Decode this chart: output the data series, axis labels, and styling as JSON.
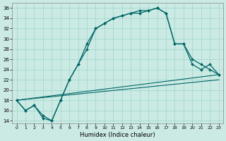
{
  "xlabel": "Humidex (Indice chaleur)",
  "background_color": "#cceae4",
  "grid_color": "#99d5cc",
  "line_color": "#006666",
  "xlim": [
    -0.5,
    23.5
  ],
  "ylim": [
    13.5,
    37
  ],
  "yticks": [
    14,
    16,
    18,
    20,
    22,
    24,
    26,
    28,
    30,
    32,
    34,
    36
  ],
  "xticks": [
    0,
    1,
    2,
    3,
    4,
    5,
    6,
    7,
    8,
    9,
    10,
    11,
    12,
    13,
    14,
    15,
    16,
    17,
    18,
    19,
    20,
    21,
    22,
    23
  ],
  "curve1_x": [
    0,
    1,
    2,
    3,
    4,
    5,
    6,
    7,
    8,
    9,
    10,
    11,
    12,
    13,
    14,
    15,
    16,
    17,
    18,
    19,
    20,
    21,
    22,
    23
  ],
  "curve1_y": [
    18,
    16,
    17,
    14.5,
    14,
    18,
    22,
    25,
    29,
    32,
    33,
    34,
    34.5,
    35,
    35,
    35.5,
    36,
    35,
    29,
    29,
    26,
    25,
    24,
    23
  ],
  "curve2_x": [
    0,
    1,
    2,
    3,
    4,
    5,
    6,
    7,
    8,
    9,
    10,
    11,
    12,
    13,
    14,
    15,
    16,
    17,
    18,
    19,
    20,
    21,
    22,
    23
  ],
  "curve2_y": [
    18,
    16,
    17,
    15,
    14,
    18,
    22,
    25,
    28,
    32,
    33,
    34,
    34.5,
    35,
    35.5,
    35.5,
    36,
    35,
    29,
    29,
    25,
    24,
    25,
    23
  ],
  "line1_x": [
    0,
    23
  ],
  "line1_y": [
    18,
    23
  ],
  "line2_x": [
    0,
    23
  ],
  "line2_y": [
    18,
    22
  ]
}
